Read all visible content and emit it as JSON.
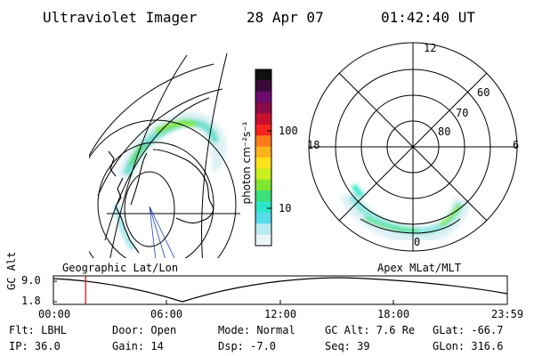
{
  "header": {
    "instrument": "Ultraviolet Imager",
    "date": "28 Apr 07",
    "time": "01:42:40 UT"
  },
  "colorbar": {
    "label": "photon cm⁻²s⁻¹",
    "ticks": [
      "100",
      "10"
    ],
    "colors": [
      "#101010",
      "#3a0a3a",
      "#6d0a6d",
      "#8a0a4a",
      "#c8102e",
      "#f4241f",
      "#ff7a1a",
      "#ffb31a",
      "#ffe11a",
      "#c8f01e",
      "#7fe632",
      "#3ae07a",
      "#2ce6c8",
      "#55dcea",
      "#b6ecf2",
      "#e9f6f8"
    ]
  },
  "geo_map": {
    "label": "Geographic Lat/Lon"
  },
  "polar_plot": {
    "label": "Apex MLat/MLT",
    "mlt_labels": {
      "top": "12",
      "left": "18",
      "right": "6",
      "bottom": "0"
    },
    "lat_labels": [
      "60",
      "70",
      "80"
    ]
  },
  "timeline": {
    "ylabel": "GC Alt",
    "yticks": [
      "9.0",
      "1.8"
    ],
    "xticks": [
      "00:00",
      "06:00",
      "12:00",
      "18:00",
      "23:59"
    ],
    "current_time_fraction": 0.071
  },
  "status": {
    "flt": "Flt: LBHL",
    "ip": "IP: 36.0",
    "door": "Door: Open",
    "gain": "Gain: 14",
    "mode": "Mode: Normal",
    "dsp": "Dsp:    -7.0",
    "gcalt": "GC Alt: 7.6 Re",
    "seq": "Seq: 39",
    "glat": "GLat: -66.7",
    "glon": "GLon: 316.6"
  }
}
